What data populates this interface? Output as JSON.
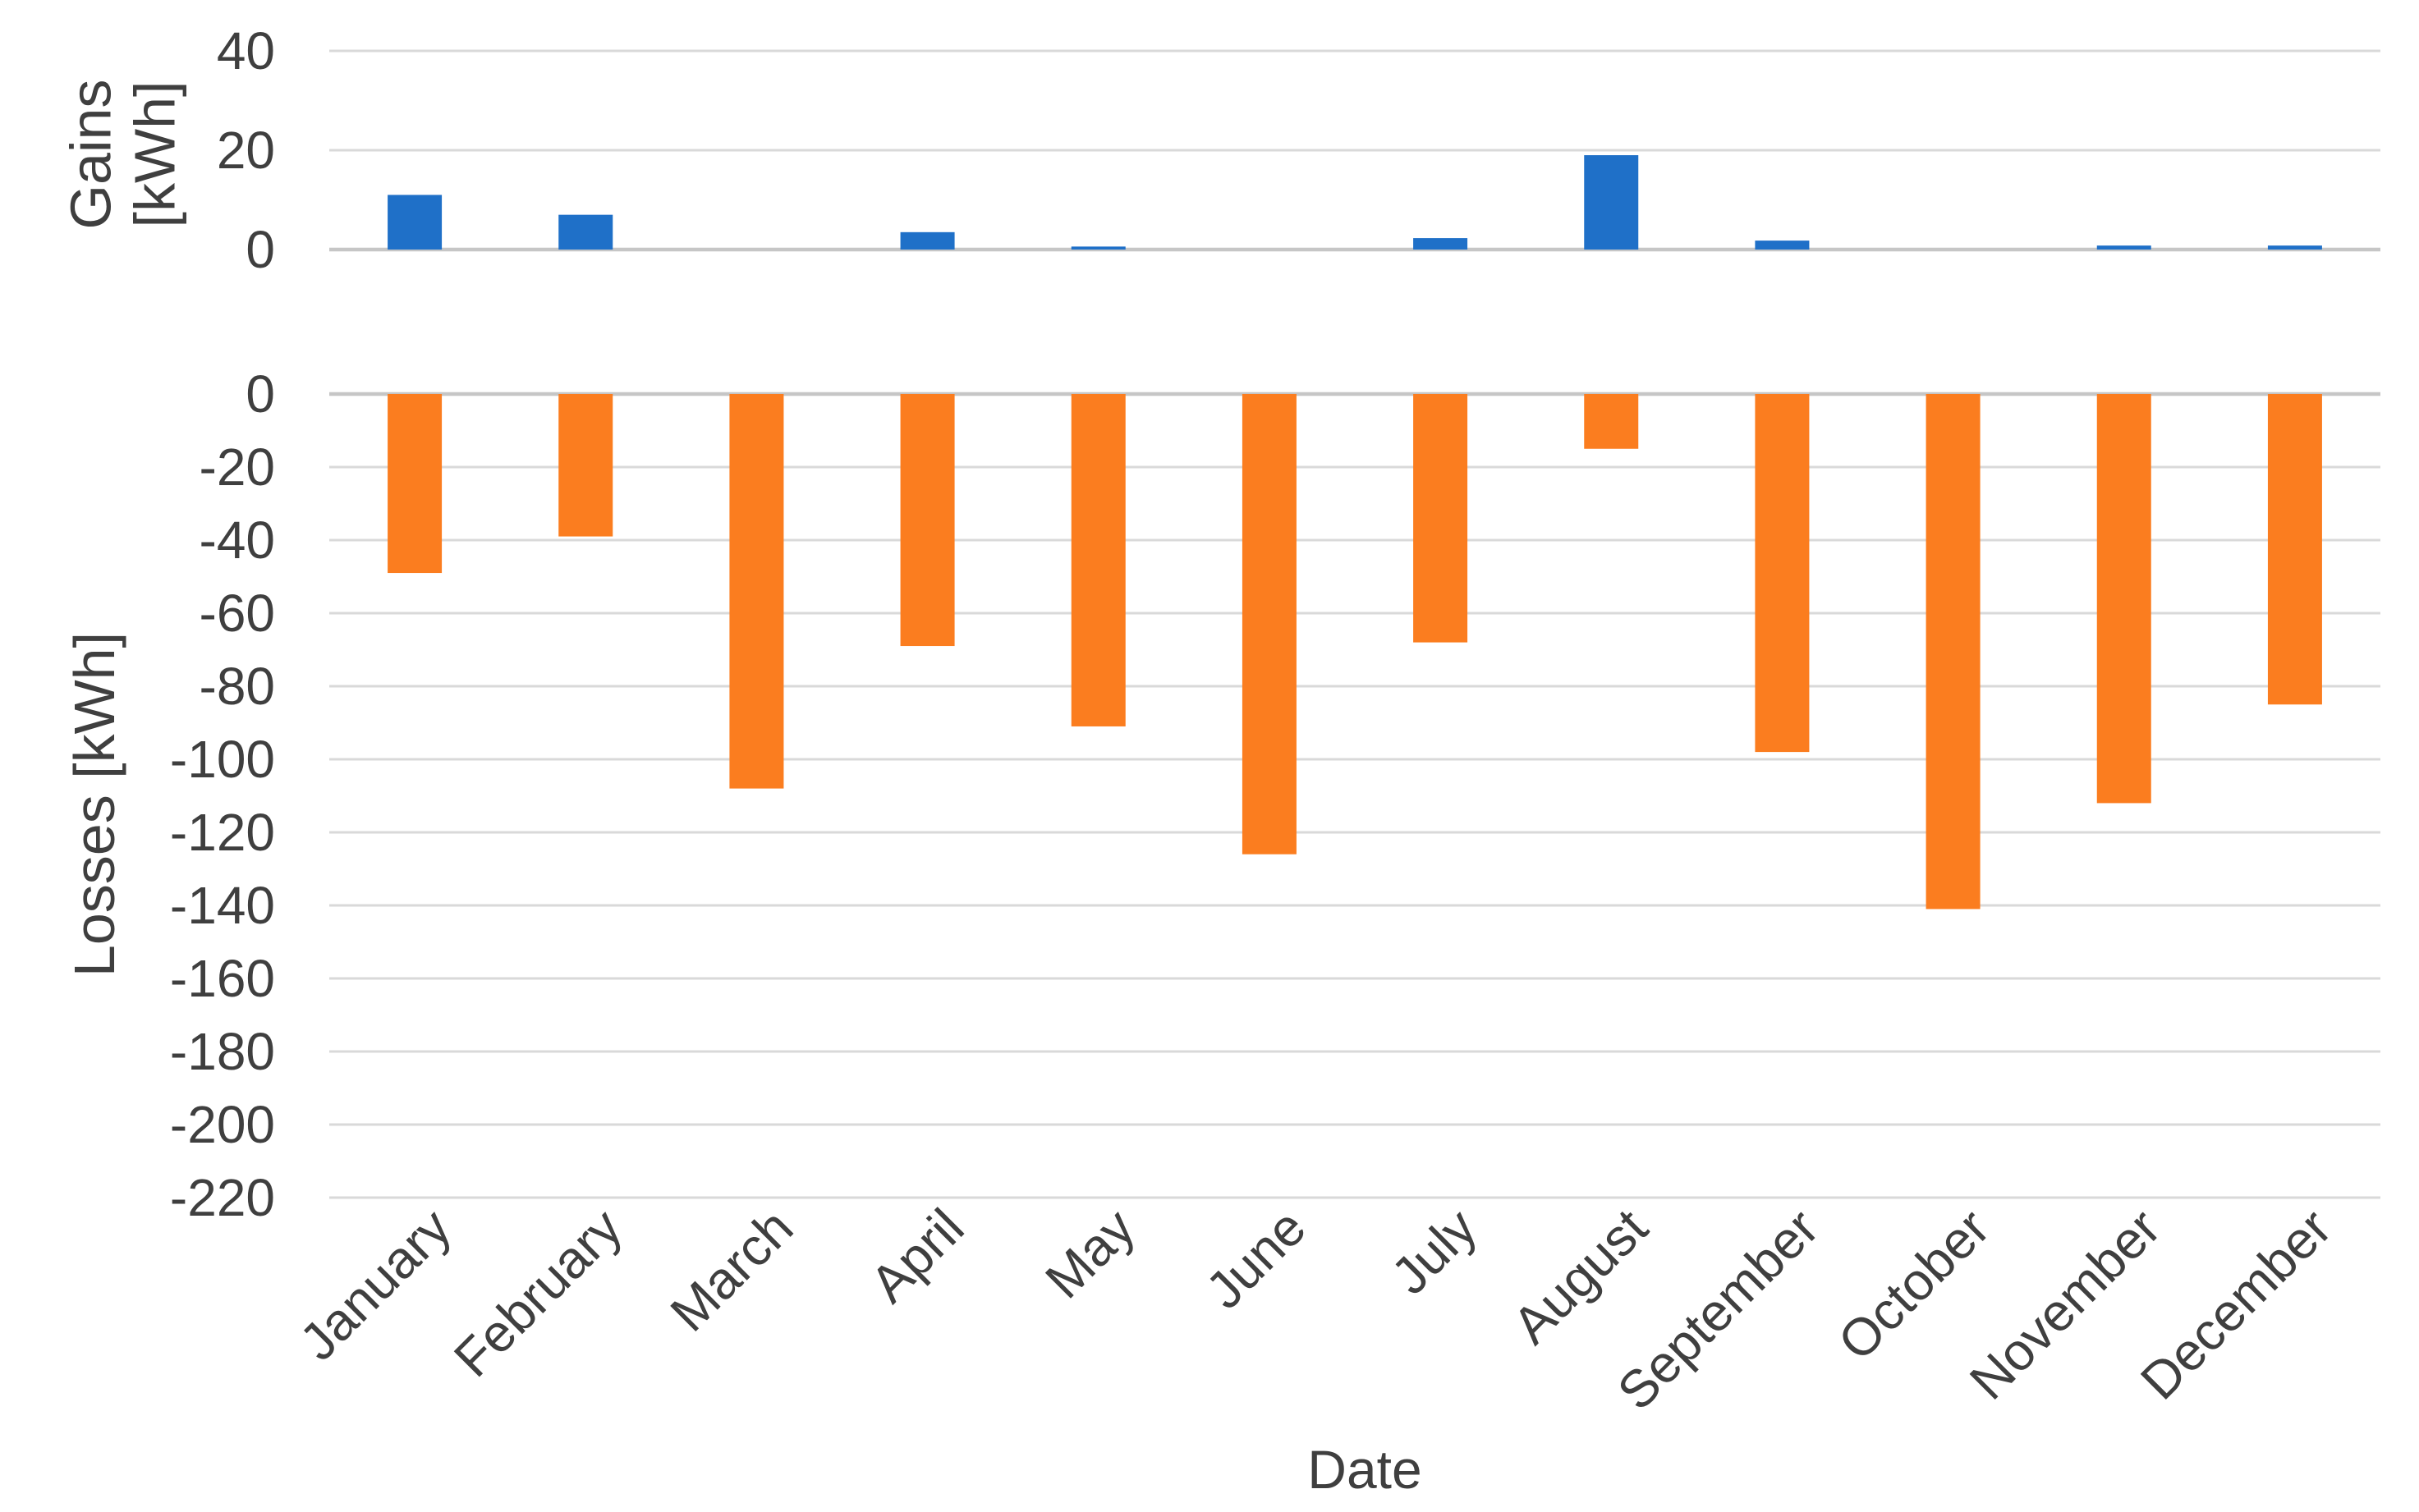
{
  "chart_data": [
    {
      "type": "bar",
      "name": "gains",
      "title": "",
      "categories": [
        "January",
        "February",
        "March",
        "April",
        "May",
        "June",
        "July",
        "August",
        "September",
        "October",
        "November",
        "December"
      ],
      "values": [
        11,
        7,
        0,
        3.5,
        0.6,
        0,
        2.3,
        19,
        1.8,
        0,
        0.8,
        0.8
      ],
      "ylabel": "Gains [kWh]",
      "ylabel_lines": [
        "Gains",
        "[kWh]"
      ],
      "xlabel": "",
      "ylim": [
        0,
        40
      ],
      "yticks": [
        40,
        20,
        0
      ],
      "bar_color": "#1F70C8",
      "grid": true,
      "legend": "none"
    },
    {
      "type": "bar",
      "name": "losses",
      "title": "",
      "categories": [
        "January",
        "February",
        "March",
        "April",
        "May",
        "June",
        "July",
        "August",
        "September",
        "October",
        "November",
        "December"
      ],
      "values": [
        -49,
        -39,
        -108,
        -69,
        -91,
        -126,
        -68,
        -15,
        -98,
        -141,
        -112,
        -85
      ],
      "ylabel": "Losses [kWh]",
      "xlabel": "Date",
      "ylim": [
        -220,
        0
      ],
      "yticks": [
        0,
        -20,
        -40,
        -60,
        -80,
        -100,
        -120,
        -140,
        -160,
        -180,
        -200,
        -220
      ],
      "bar_color": "#FB7D1F",
      "grid": true,
      "legend": "none"
    }
  ],
  "styles": {
    "grid_color": "#D9D9D9",
    "zero_line_color": "#C6C6C6",
    "text_color": "#3F3F3F",
    "background": "#FFFFFF"
  }
}
